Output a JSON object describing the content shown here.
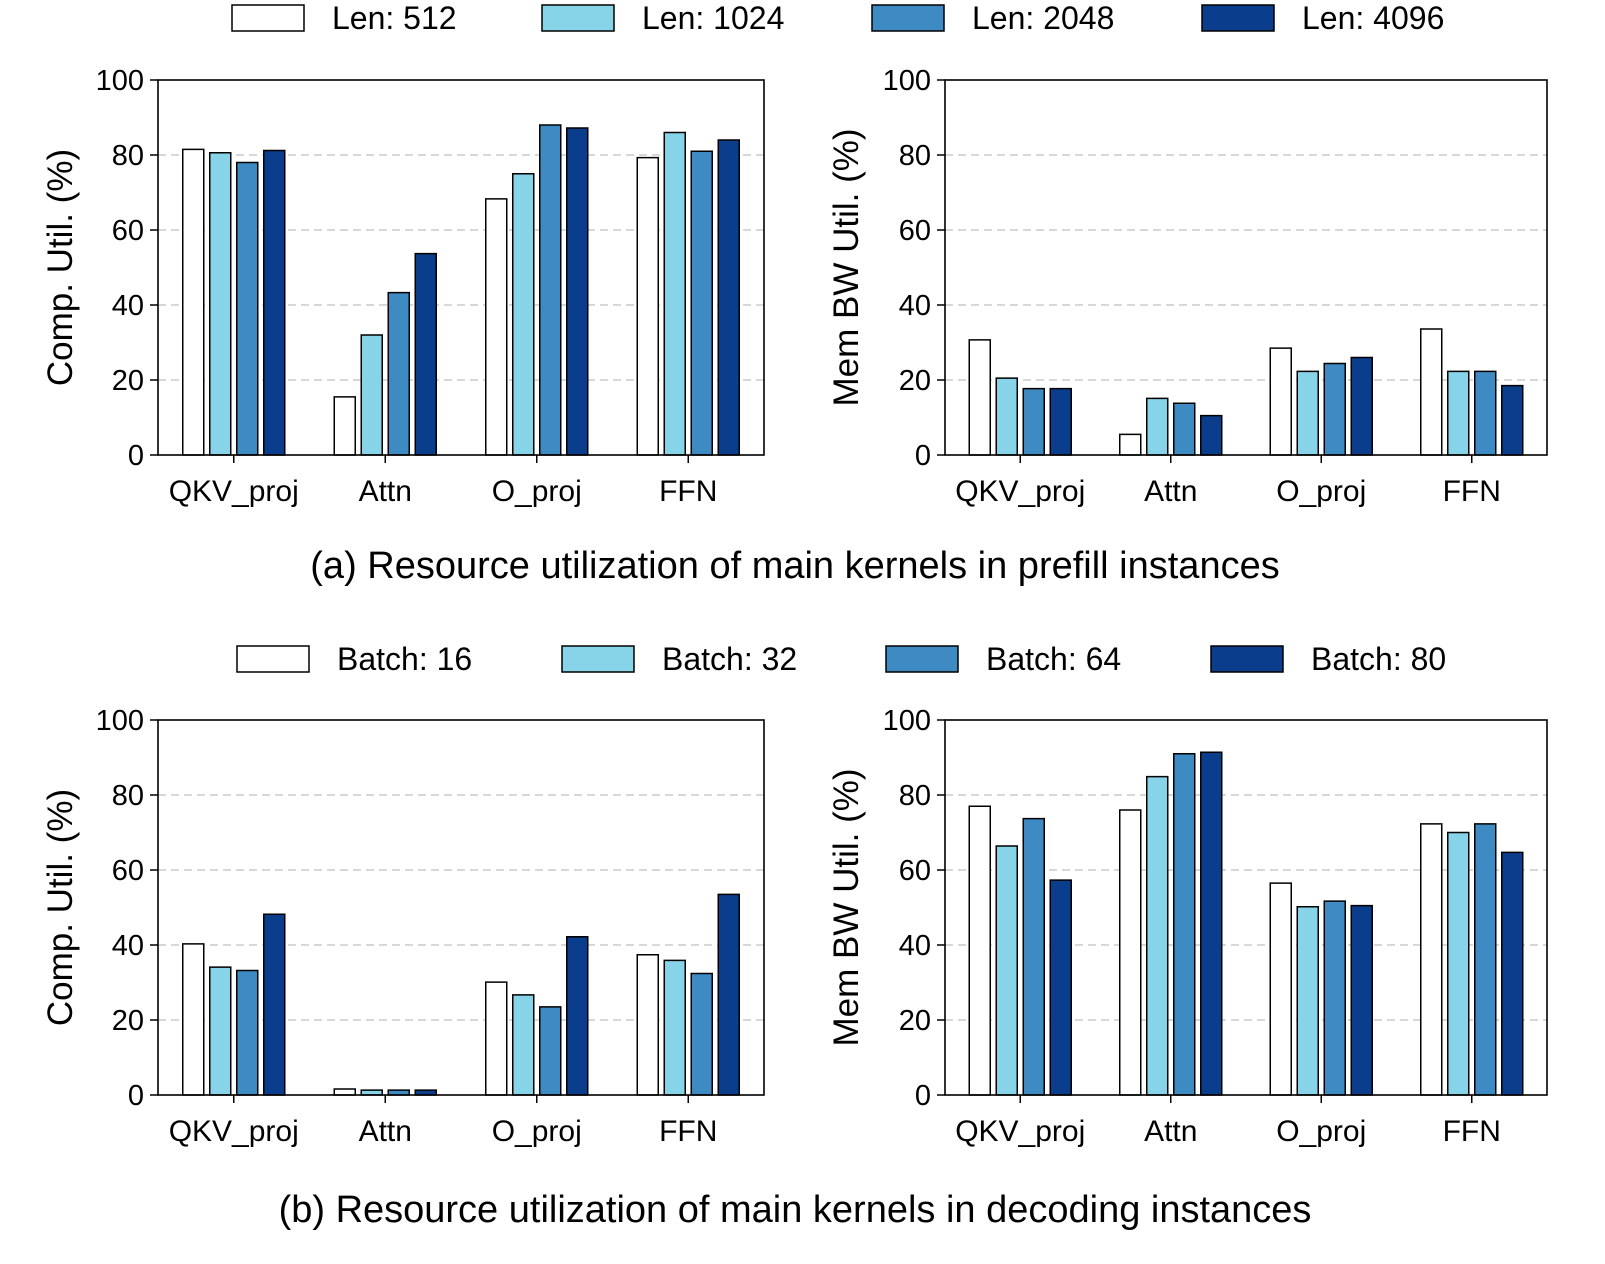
{
  "colors": {
    "series": [
      "#ffffff",
      "#87d3e8",
      "#3e8ac2",
      "#0a3d8c"
    ],
    "grid": "#cccccc",
    "axis": "#000000"
  },
  "captions": {
    "a": "(a) Resource utilization of main kernels in prefill instances",
    "b": "(b) Resource utilization of main kernels in decoding instances"
  },
  "legends": {
    "a": [
      "Len: 512",
      "Len: 1024",
      "Len: 2048",
      "Len: 4096"
    ],
    "b": [
      "Batch: 16",
      "Batch: 32",
      "Batch: 64",
      "Batch: 80"
    ]
  },
  "chart_data": [
    {
      "id": "prefill-comp",
      "type": "bar",
      "ylabel": "Comp. Util. (%)",
      "ylim": [
        0,
        100
      ],
      "yticks": [
        "0",
        "20",
        "40",
        "60",
        "80",
        "100"
      ],
      "grid": "horizontal dashed",
      "categories": [
        "QKV_proj",
        "Attn",
        "O_proj",
        "FFN"
      ],
      "series": [
        {
          "name": "Len: 512",
          "values": [
            81.5,
            15.5,
            68.3,
            79.3
          ]
        },
        {
          "name": "Len: 1024",
          "values": [
            80.6,
            32.0,
            75.0,
            86.0
          ]
        },
        {
          "name": "Len: 2048",
          "values": [
            78.0,
            43.3,
            88.0,
            81.0
          ]
        },
        {
          "name": "Len: 4096",
          "values": [
            81.2,
            53.7,
            87.2,
            84.0
          ]
        }
      ]
    },
    {
      "id": "prefill-mem",
      "type": "bar",
      "ylabel": "Mem BW Util. (%)",
      "ylim": [
        0,
        100
      ],
      "yticks": [
        "0",
        "20",
        "40",
        "60",
        "80",
        "100"
      ],
      "grid": "horizontal dashed",
      "categories": [
        "QKV_proj",
        "Attn",
        "O_proj",
        "FFN"
      ],
      "series": [
        {
          "name": "Len: 512",
          "values": [
            30.7,
            5.5,
            28.5,
            33.6
          ]
        },
        {
          "name": "Len: 1024",
          "values": [
            20.5,
            15.1,
            22.3,
            22.3
          ]
        },
        {
          "name": "Len: 2048",
          "values": [
            17.7,
            13.8,
            24.4,
            22.3
          ]
        },
        {
          "name": "Len: 4096",
          "values": [
            17.7,
            10.5,
            26.0,
            18.5
          ]
        }
      ]
    },
    {
      "id": "decode-comp",
      "type": "bar",
      "ylabel": "Comp. Util. (%)",
      "ylim": [
        0,
        100
      ],
      "yticks": [
        "0",
        "20",
        "40",
        "60",
        "80",
        "100"
      ],
      "grid": "horizontal dashed",
      "categories": [
        "QKV_proj",
        "Attn",
        "O_proj",
        "FFN"
      ],
      "series": [
        {
          "name": "Batch: 16",
          "values": [
            40.3,
            1.6,
            30.1,
            37.4
          ]
        },
        {
          "name": "Batch: 32",
          "values": [
            34.1,
            1.3,
            26.7,
            35.9
          ]
        },
        {
          "name": "Batch: 64",
          "values": [
            33.2,
            1.3,
            23.5,
            32.4
          ]
        },
        {
          "name": "Batch: 80",
          "values": [
            48.2,
            1.3,
            42.2,
            53.5
          ]
        }
      ]
    },
    {
      "id": "decode-mem",
      "type": "bar",
      "ylabel": "Mem BW Util. (%)",
      "ylim": [
        0,
        100
      ],
      "yticks": [
        "0",
        "20",
        "40",
        "60",
        "80",
        "100"
      ],
      "grid": "horizontal dashed",
      "categories": [
        "QKV_proj",
        "Attn",
        "O_proj",
        "FFN"
      ],
      "series": [
        {
          "name": "Batch: 16",
          "values": [
            77.0,
            76.0,
            56.5,
            72.3
          ]
        },
        {
          "name": "Batch: 32",
          "values": [
            66.4,
            84.9,
            50.2,
            70.0
          ]
        },
        {
          "name": "Batch: 64",
          "values": [
            73.7,
            91.0,
            51.7,
            72.3
          ]
        },
        {
          "name": "Batch: 80",
          "values": [
            57.3,
            91.4,
            50.5,
            64.7
          ]
        }
      ]
    }
  ]
}
